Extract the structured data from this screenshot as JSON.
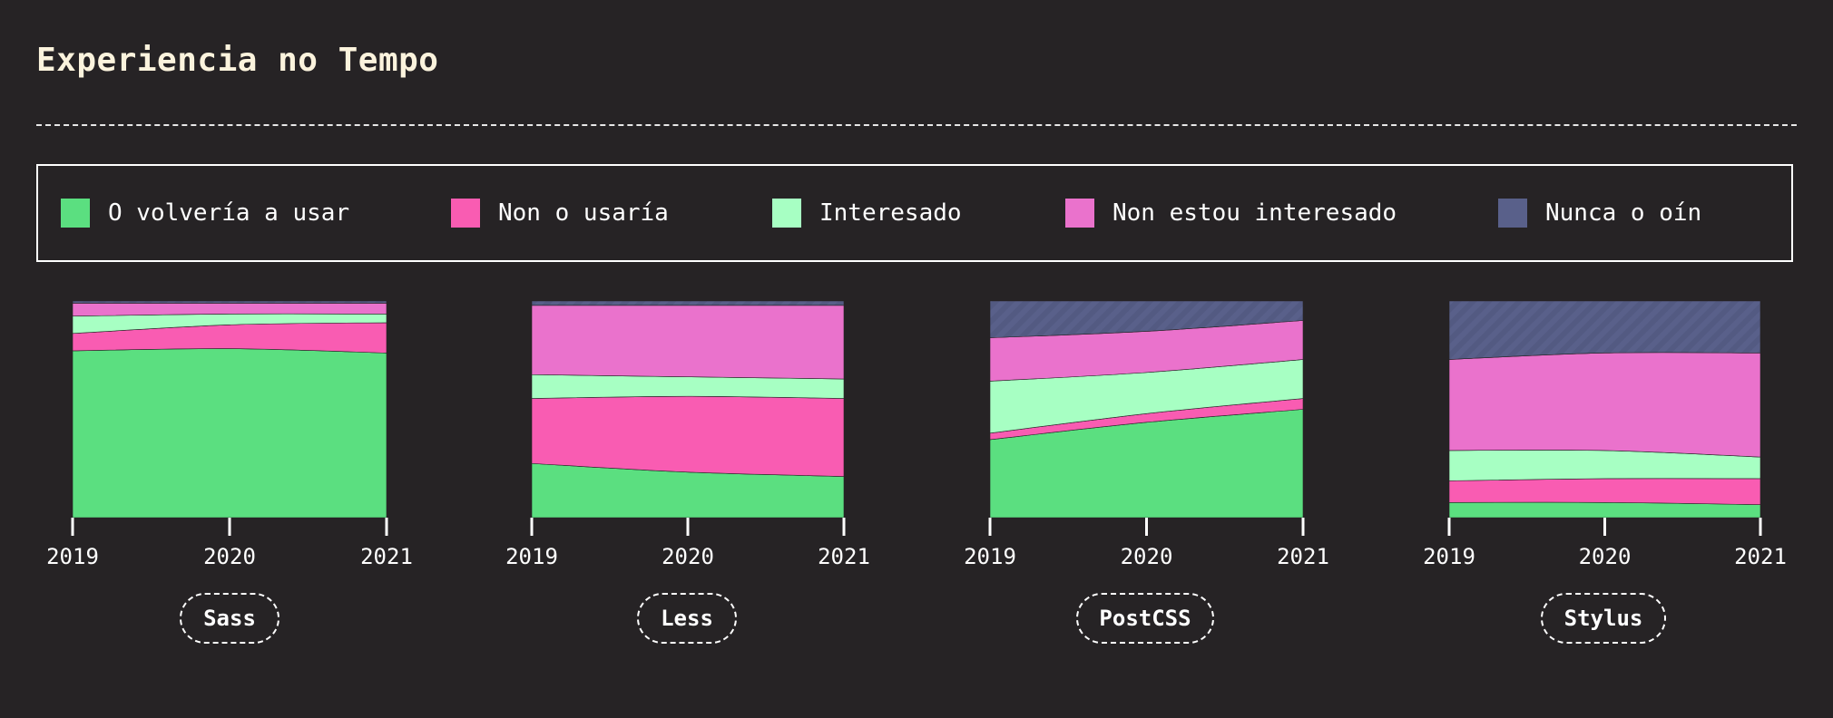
{
  "title": "Experiencia no Tempo",
  "legend": [
    {
      "label": "O volvería a usar",
      "color": "#5bdf80"
    },
    {
      "label": "Non o usaría",
      "color": "#f95cb2"
    },
    {
      "label": "Interesado",
      "color": "#a7ffc3"
    },
    {
      "label": "Non estou interesado",
      "color": "#ea72cc"
    },
    {
      "label": "Nunca o oín",
      "color": "#59608a"
    }
  ],
  "chart_data": [
    {
      "type": "area",
      "title": "Sass",
      "x": [
        "2019",
        "2020",
        "2021"
      ],
      "stacked": "percent",
      "series": [
        {
          "name": "O volvería a usar",
          "values": [
            77,
            78,
            76
          ]
        },
        {
          "name": "Non o usaría",
          "values": [
            8,
            11,
            14
          ]
        },
        {
          "name": "Interesado",
          "values": [
            8,
            5,
            4
          ]
        },
        {
          "name": "Non estou interesado",
          "values": [
            6,
            5,
            5
          ]
        },
        {
          "name": "Nunca o oín",
          "values": [
            1,
            1,
            1
          ]
        }
      ]
    },
    {
      "type": "area",
      "title": "Less",
      "x": [
        "2019",
        "2020",
        "2021"
      ],
      "stacked": "percent",
      "series": [
        {
          "name": "O volvería a usar",
          "values": [
            25,
            21,
            19
          ]
        },
        {
          "name": "Non o usaría",
          "values": [
            30,
            35,
            36
          ]
        },
        {
          "name": "Interesado",
          "values": [
            11,
            9,
            9
          ]
        },
        {
          "name": "Non estou interesado",
          "values": [
            32,
            33,
            34
          ]
        },
        {
          "name": "Nunca o oín",
          "values": [
            2,
            2,
            2
          ]
        }
      ]
    },
    {
      "type": "area",
      "title": "PostCSS",
      "x": [
        "2019",
        "2020",
        "2021"
      ],
      "stacked": "percent",
      "series": [
        {
          "name": "O volvería a usar",
          "values": [
            36,
            44,
            50
          ]
        },
        {
          "name": "Non o usaría",
          "values": [
            3,
            4,
            5
          ]
        },
        {
          "name": "Interesado",
          "values": [
            24,
            19,
            18
          ]
        },
        {
          "name": "Non estou interesado",
          "values": [
            20,
            19,
            18
          ]
        },
        {
          "name": "Nunca o oín",
          "values": [
            17,
            14,
            9
          ]
        }
      ]
    },
    {
      "type": "area",
      "title": "Stylus",
      "x": [
        "2019",
        "2020",
        "2021"
      ],
      "stacked": "percent",
      "series": [
        {
          "name": "O volvería a usar",
          "values": [
            7,
            7,
            6
          ]
        },
        {
          "name": "Non o usaría",
          "values": [
            10,
            11,
            12
          ]
        },
        {
          "name": "Interesado",
          "values": [
            14,
            13,
            10
          ]
        },
        {
          "name": "Non estou interesado",
          "values": [
            42,
            45,
            48
          ]
        },
        {
          "name": "Nunca o oín",
          "values": [
            27,
            24,
            24
          ]
        }
      ]
    }
  ]
}
